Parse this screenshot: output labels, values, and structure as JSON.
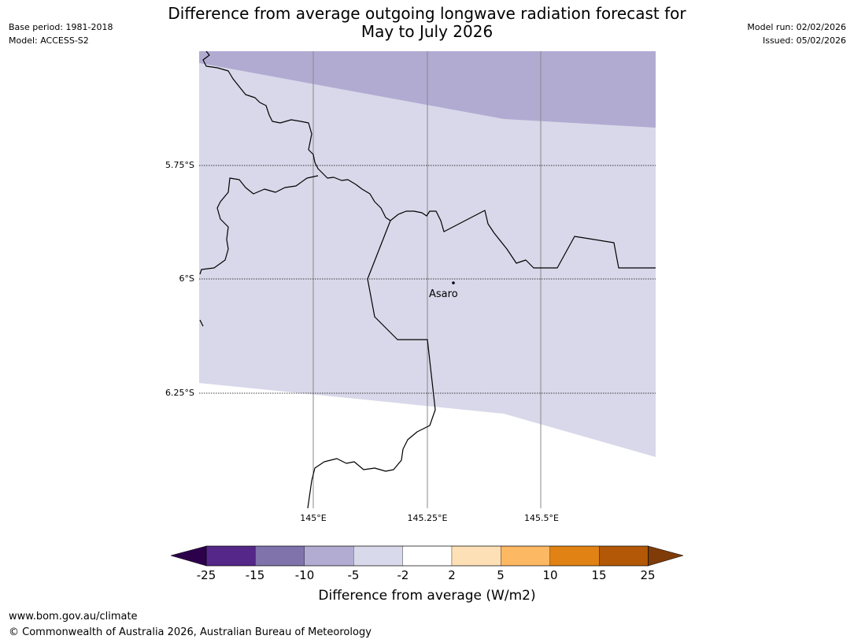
{
  "title": {
    "line1": "Difference from average outgoing longwave radiation forecast for",
    "line2": "May to July 2026"
  },
  "meta_left": {
    "base_period": "Base period: 1981-2018",
    "model": "Model: ACCESS-S2"
  },
  "meta_right": {
    "model_run": "Model run: 02/02/2026",
    "issued": "Issued: 05/02/2026"
  },
  "map": {
    "lat_labels": [
      "5.75°S",
      "6°S",
      "6.25°S"
    ],
    "lon_labels": [
      "145°E",
      "145.25°E",
      "145.5°E"
    ],
    "place": "Asaro",
    "colors": {
      "light_purple": "#d8d8ea",
      "mid_purple": "#b1abd2",
      "border": "#000000",
      "gridline": "#888888"
    }
  },
  "colorbar": {
    "label": "Difference from average (W/m2)",
    "ticks": [
      "-25",
      "-15",
      "-10",
      "-5",
      "-2",
      "2",
      "5",
      "10",
      "15",
      "25"
    ],
    "colors": [
      "#2d004b",
      "#542788",
      "#8073ac",
      "#b2abd2",
      "#d8daeb",
      "#ffffff",
      "#fee0b6",
      "#fdb863",
      "#e08214",
      "#b35806",
      "#7f3b08"
    ]
  },
  "footer": {
    "url": "www.bom.gov.au/climate",
    "copyright": "© Commonwealth of Australia 2026, Australian Bureau of Meteorology"
  }
}
